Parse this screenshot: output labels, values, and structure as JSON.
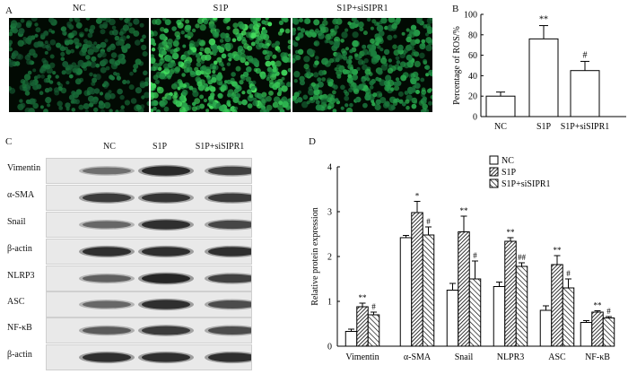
{
  "panels": {
    "a": "A",
    "b": "B",
    "c": "C",
    "d": "D"
  },
  "micrographs": [
    {
      "label": "NC",
      "intensity": 0.35
    },
    {
      "label": "S1P",
      "intensity": 0.95
    },
    {
      "label": "S1P+siSIPR1",
      "intensity": 0.65
    }
  ],
  "western_blot": {
    "lanes": [
      "NC",
      "S1P",
      "S1P+siSIPR1"
    ],
    "rows": [
      {
        "name": "Vimentin",
        "bands": [
          0.35,
          0.9,
          0.7
        ]
      },
      {
        "name": "α-SMA",
        "bands": [
          0.75,
          0.8,
          0.75
        ]
      },
      {
        "name": "Snail",
        "bands": [
          0.4,
          0.85,
          0.65
        ]
      },
      {
        "name": "β-actin",
        "bands": [
          0.85,
          0.85,
          0.85
        ]
      },
      {
        "name": "NLRP3",
        "bands": [
          0.45,
          0.95,
          0.7
        ]
      },
      {
        "name": "ASC",
        "bands": [
          0.4,
          0.85,
          0.6
        ]
      },
      {
        "name": "NF-κB",
        "bands": [
          0.5,
          0.75,
          0.6
        ]
      },
      {
        "name": "β-actin",
        "bands": [
          0.85,
          0.85,
          0.85
        ]
      }
    ]
  },
  "colors": {
    "fluorescence": "#3fd36a",
    "bar_outline": "#000000",
    "band": "#1a1a1a"
  },
  "chart_data": [
    {
      "type": "bar",
      "panel": "B",
      "ylabel": "Percentage of ROS/%",
      "ylim": [
        0,
        100
      ],
      "yticks": [
        0,
        20,
        40,
        60,
        80,
        100
      ],
      "categories": [
        "NC",
        "S1P",
        "S1P+siSIPR1"
      ],
      "values": [
        20,
        76,
        45
      ],
      "errors": [
        4,
        13,
        9
      ],
      "annotations": [
        "",
        "**",
        "#"
      ]
    },
    {
      "type": "bar",
      "panel": "D",
      "ylabel": "Relative protein expression",
      "ylim": [
        0,
        4
      ],
      "yticks": [
        0,
        1,
        2,
        3,
        4
      ],
      "categories": [
        "Vimentin",
        "α-SMA",
        "Snail",
        "NLPR3",
        "ASC",
        "NF-κB"
      ],
      "series": [
        {
          "name": "NC",
          "pattern": "open",
          "values": [
            0.33,
            2.42,
            1.25,
            1.33,
            0.8,
            0.53
          ],
          "errors": [
            0.05,
            0.05,
            0.15,
            0.1,
            0.1,
            0.04
          ],
          "annotations": [
            "",
            "",
            "",
            "",
            "",
            ""
          ]
        },
        {
          "name": "S1P",
          "pattern": "dense-hatch",
          "values": [
            0.88,
            2.98,
            2.55,
            2.34,
            1.82,
            0.76
          ],
          "errors": [
            0.08,
            0.25,
            0.35,
            0.08,
            0.2,
            0.03
          ],
          "annotations": [
            "**",
            "*",
            "**",
            "**",
            "**",
            "**"
          ]
        },
        {
          "name": "S1P+siSIPR1",
          "pattern": "hatch",
          "values": [
            0.7,
            2.48,
            1.5,
            1.78,
            1.3,
            0.63
          ],
          "errors": [
            0.06,
            0.18,
            0.4,
            0.08,
            0.2,
            0.03
          ],
          "annotations": [
            "#",
            "#",
            "#",
            "##",
            "#",
            "#"
          ]
        }
      ]
    }
  ]
}
